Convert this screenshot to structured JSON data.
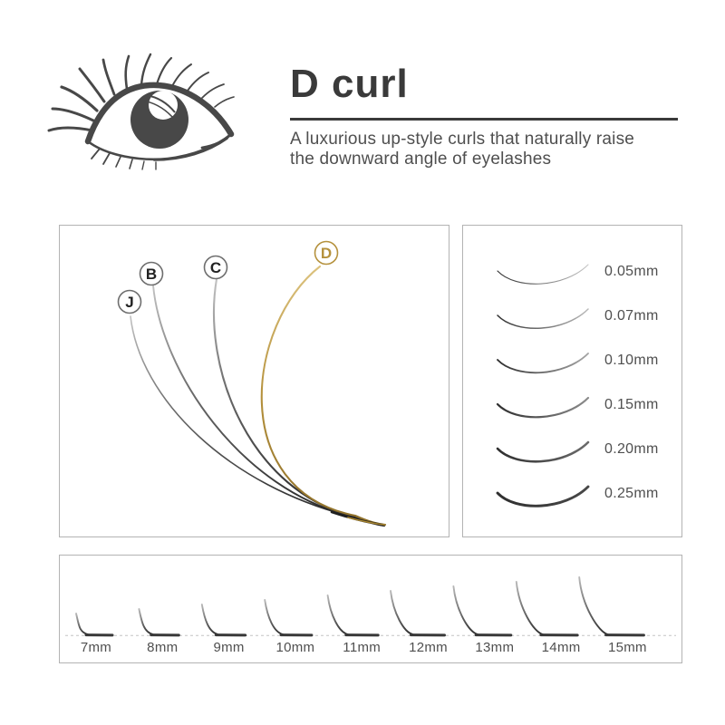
{
  "header": {
    "title": "D curl",
    "description": [
      "A luxurious up-style curls that naturally raise",
      "the downward angle of eyelashes"
    ],
    "eye_icon": "eye-with-lashes"
  },
  "curl_diagram": {
    "curls": [
      {
        "label": "J",
        "highlighted": false
      },
      {
        "label": "B",
        "highlighted": false
      },
      {
        "label": "C",
        "highlighted": false
      },
      {
        "label": "D",
        "highlighted": true
      }
    ]
  },
  "thickness_diagram": {
    "items": [
      {
        "label": "0.05mm"
      },
      {
        "label": "0.07mm"
      },
      {
        "label": "0.10mm"
      },
      {
        "label": "0.15mm"
      },
      {
        "label": "0.20mm"
      },
      {
        "label": "0.25mm"
      }
    ]
  },
  "length_diagram": {
    "items": [
      {
        "label": "7mm"
      },
      {
        "label": "8mm"
      },
      {
        "label": "9mm"
      },
      {
        "label": "10mm"
      },
      {
        "label": "11mm"
      },
      {
        "label": "12mm"
      },
      {
        "label": "13mm"
      },
      {
        "label": "14mm"
      },
      {
        "label": "15mm"
      }
    ]
  },
  "colors": {
    "ink": "#3a3a3a",
    "body_text": "#4f4f4f",
    "accent_gold": "#b5913c",
    "panel_border": "#b3b3b3",
    "label_circle_gray": "#6e6e6e",
    "letter_black": "#222222",
    "lash_dark": "#2f2f2f",
    "lash_light": "#bdbdbd",
    "baseline_dash": "#c4c4c4"
  }
}
